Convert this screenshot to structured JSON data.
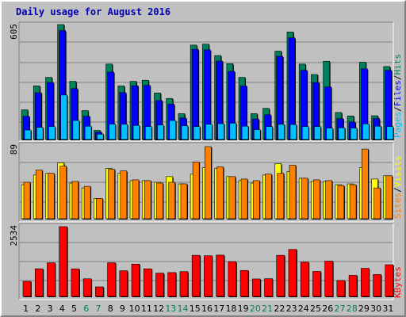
{
  "title": "Daily usage for August 2016",
  "colors": {
    "hits": "#00805c",
    "files": "#0000ff",
    "pages": "#00c0ff",
    "visits": "#ffff00",
    "sites": "#ff8000",
    "kbytes": "#ff0000",
    "weekday_label": "#000000",
    "weekend_label": "#00805c"
  },
  "chart_data": [
    {
      "type": "bar",
      "panel": "hits-files-pages",
      "ymax_label": "605",
      "ylim": [
        0,
        605
      ],
      "grid": true,
      "x": [
        "1",
        "2",
        "3",
        "4",
        "5",
        "6",
        "7",
        "8",
        "9",
        "10",
        "11",
        "12",
        "13",
        "14",
        "15",
        "16",
        "17",
        "18",
        "19",
        "20",
        "21",
        "22",
        "23",
        "24",
        "25",
        "26",
        "27",
        "28",
        "29",
        "30",
        "31"
      ],
      "series": [
        {
          "name": "Hits",
          "values": [
            156,
            282,
            327,
            605,
            306,
            152,
            48,
            397,
            282,
            306,
            312,
            245,
            216,
            136,
            497,
            502,
            442,
            399,
            327,
            136,
            164,
            465,
            566,
            397,
            342,
            412,
            142,
            124,
            407,
            125,
            384
          ]
        },
        {
          "name": "Files",
          "values": [
            122,
            246,
            300,
            573,
            268,
            122,
            38,
            355,
            247,
            283,
            285,
            205,
            186,
            113,
            475,
            472,
            413,
            359,
            282,
            108,
            130,
            438,
            535,
            364,
            300,
            277,
            110,
            92,
            372,
            110,
            364
          ]
        },
        {
          "name": "Pages",
          "values": [
            50,
            64,
            68,
            234,
            100,
            70,
            28,
            81,
            80,
            74,
            68,
            76,
            100,
            72,
            68,
            80,
            83,
            86,
            70,
            52,
            68,
            80,
            79,
            68,
            68,
            60,
            62,
            60,
            82,
            70,
            68
          ]
        }
      ],
      "ylabels": [
        "Pages",
        "Files",
        "Hits"
      ]
    },
    {
      "type": "bar",
      "panel": "visits-sites",
      "ymax_label": "89",
      "ylim": [
        0,
        89
      ],
      "grid": true,
      "x": [
        "1",
        "2",
        "3",
        "4",
        "5",
        "6",
        "7",
        "8",
        "9",
        "10",
        "11",
        "12",
        "13",
        "14",
        "15",
        "16",
        "17",
        "18",
        "19",
        "20",
        "21",
        "22",
        "23",
        "24",
        "25",
        "26",
        "27",
        "28",
        "29",
        "30",
        "31"
      ],
      "series": [
        {
          "name": "Visits",
          "values": [
            42,
            54,
            56,
            69,
            44,
            38,
            25,
            62,
            56,
            47,
            47,
            45,
            52,
            43,
            55,
            63,
            62,
            52,
            47,
            44,
            54,
            68,
            58,
            50,
            46,
            46,
            42,
            43,
            63,
            49,
            53
          ]
        },
        {
          "name": "Sites",
          "values": [
            45,
            60,
            56,
            65,
            46,
            40,
            25,
            61,
            59,
            48,
            47,
            44,
            45,
            43,
            70,
            89,
            64,
            52,
            49,
            47,
            55,
            56,
            66,
            50,
            48,
            47,
            41,
            42,
            86,
            38,
            53
          ]
        }
      ],
      "ylabels": [
        "Sites",
        "Visits"
      ]
    },
    {
      "type": "bar",
      "panel": "kbytes",
      "ymax_label": "2534",
      "ylim": [
        0,
        2534
      ],
      "grid": true,
      "x": [
        "1",
        "2",
        "3",
        "4",
        "5",
        "6",
        "7",
        "8",
        "9",
        "10",
        "11",
        "12",
        "13",
        "14",
        "15",
        "16",
        "17",
        "18",
        "19",
        "20",
        "21",
        "22",
        "23",
        "24",
        "25",
        "26",
        "27",
        "28",
        "29",
        "30",
        "31"
      ],
      "series": [
        {
          "name": "KBytes",
          "values": [
            546,
            1004,
            1221,
            2534,
            1001,
            640,
            346,
            1222,
            932,
            1172,
            1002,
            846,
            867,
            901,
            1493,
            1477,
            1500,
            1262,
            941,
            634,
            644,
            1493,
            1705,
            1242,
            907,
            1283,
            579,
            765,
            1020,
            795,
            1151
          ]
        }
      ],
      "ylabels": [
        "KBytes"
      ]
    }
  ],
  "days": [
    "1",
    "2",
    "3",
    "4",
    "5",
    "6",
    "7",
    "8",
    "9",
    "10",
    "11",
    "12",
    "13",
    "14",
    "15",
    "16",
    "17",
    "18",
    "19",
    "20",
    "21",
    "22",
    "23",
    "24",
    "25",
    "26",
    "27",
    "28",
    "29",
    "30",
    "31"
  ],
  "weekend_days": [
    "6",
    "7",
    "13",
    "14",
    "20",
    "21",
    "27",
    "28"
  ]
}
